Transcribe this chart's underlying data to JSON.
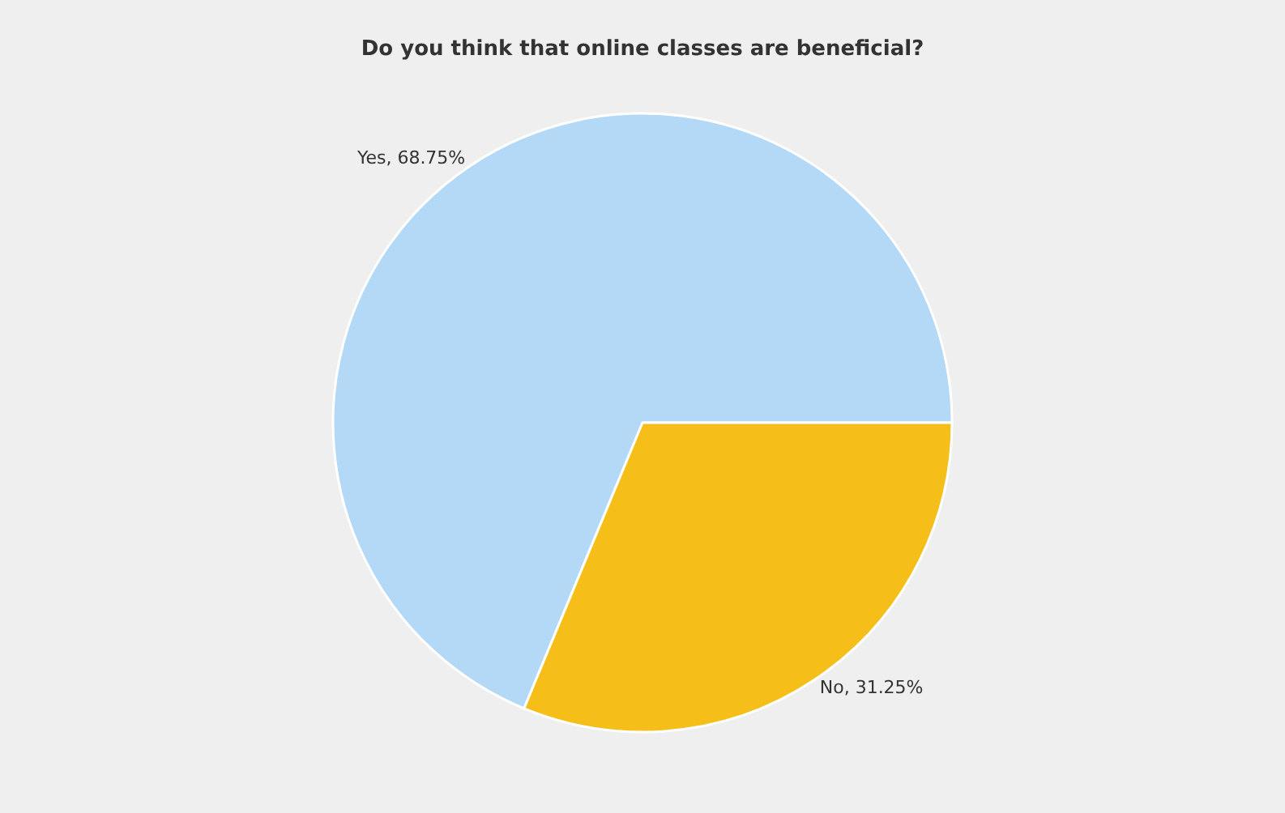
{
  "chart_data": {
    "type": "pie",
    "title": "Do you think that online classes are beneficial?",
    "categories": [
      "Yes",
      "No"
    ],
    "values": [
      68.75,
      31.25
    ],
    "colors": [
      "#b3d9f7",
      "#f5be19"
    ],
    "value_labels": [
      "68.75%",
      "31.25%"
    ],
    "legend": false
  }
}
